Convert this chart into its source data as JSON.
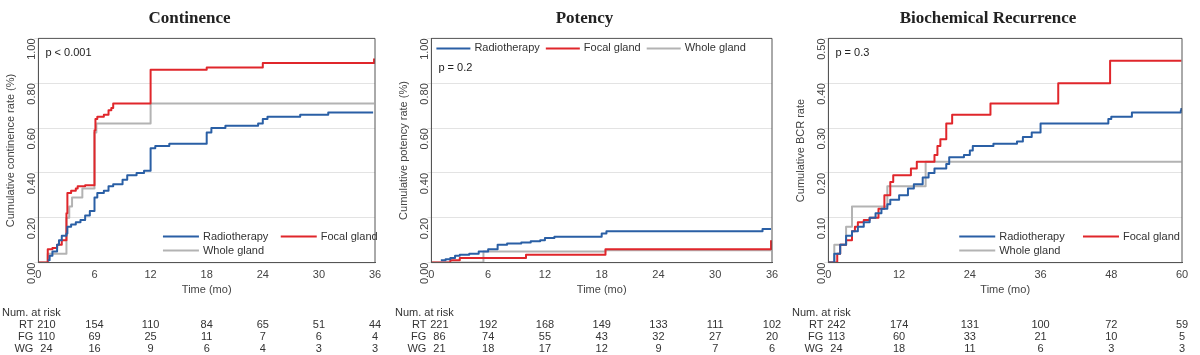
{
  "chart_data": [
    {
      "type": "step",
      "title": "Continence",
      "xlabel": "Time (mo)",
      "ylabel": "Cumulative continence rate (%)",
      "xlim": [
        0,
        36
      ],
      "xticks": [
        0,
        6,
        12,
        18,
        24,
        30,
        36
      ],
      "ylim": [
        0,
        1
      ],
      "yticks": [
        {
          "value": 0,
          "label": "0.00"
        },
        {
          "value": 0.2,
          "label": "0.20"
        },
        {
          "value": 0.4,
          "label": "0.40"
        },
        {
          "value": 0.6,
          "label": "0.60"
        },
        {
          "value": 0.8,
          "label": "0.80"
        },
        {
          "value": 1,
          "label": "1.00"
        }
      ],
      "grid": "y",
      "legend": "bottom right",
      "series": [
        {
          "name": "Radiotherapy",
          "color": "#2a5fa5",
          "x": [
            1,
            1.2,
            1.5,
            2,
            2.2,
            2.5,
            3,
            3.1,
            3.5,
            4,
            4.5,
            5,
            5.5,
            6,
            6.3,
            7,
            7.5,
            8,
            9,
            9.5,
            10.5,
            11.3,
            12,
            12.5,
            14,
            18,
            18.5,
            20,
            23.5,
            24,
            24.5,
            28,
            31,
            35.8
          ],
          "values": [
            0.01,
            0.03,
            0.05,
            0.08,
            0.1,
            0.12,
            0.13,
            0.16,
            0.17,
            0.18,
            0.19,
            0.21,
            0.23,
            0.29,
            0.31,
            0.32,
            0.34,
            0.35,
            0.37,
            0.39,
            0.4,
            0.41,
            0.51,
            0.52,
            0.53,
            0.58,
            0.6,
            0.61,
            0.62,
            0.64,
            0.65,
            0.66,
            0.67,
            0.67
          ]
        },
        {
          "name": "Focal gland",
          "color": "#e0262b",
          "x": [
            0,
            1,
            1.5,
            2,
            2.5,
            3,
            3.1,
            3.5,
            4,
            4.2,
            5,
            6,
            6.1,
            6.3,
            7,
            7.5,
            7.8,
            8,
            12,
            18,
            24,
            35.8,
            35.9
          ],
          "values": [
            0,
            0.06,
            0.065,
            0.08,
            0.1,
            0.22,
            0.31,
            0.32,
            0.33,
            0.34,
            0.345,
            0.59,
            0.64,
            0.65,
            0.66,
            0.68,
            0.69,
            0.71,
            0.86,
            0.87,
            0.89,
            0.89,
            0.91
          ]
        },
        {
          "name": "Whole gland",
          "color": "#b3b3b3",
          "x": [
            0,
            1,
            3,
            3.3,
            3.6,
            4.7,
            6,
            6.2,
            12,
            35.9
          ],
          "values": [
            0,
            0.04,
            0.2,
            0.25,
            0.29,
            0.33,
            0.58,
            0.62,
            0.71,
            0.71
          ]
        }
      ],
      "annotations": [
        "p < 0.001",
        "Num. at risk",
        "RT 210 154 110 84 65 51 44",
        "FG 110 69 25 11 7 6 4",
        "WG 24 16 9 6 4 3 3"
      ]
    },
    {
      "type": "step",
      "title": "Potency",
      "xlabel": "Time (mo)",
      "ylabel": "Cumulative potency rate (%)",
      "xlim": [
        0,
        36
      ],
      "xticks": [
        0,
        6,
        12,
        18,
        24,
        30,
        36
      ],
      "ylim": [
        0,
        1
      ],
      "yticks": [
        {
          "value": 0,
          "label": "0.00"
        },
        {
          "value": 0.2,
          "label": "0.20"
        },
        {
          "value": 0.4,
          "label": "0.40"
        },
        {
          "value": 0.6,
          "label": "0.60"
        },
        {
          "value": 0.8,
          "label": "0.80"
        },
        {
          "value": 1,
          "label": "1.00"
        }
      ],
      "grid": "y",
      "legend": "top",
      "series": [
        {
          "name": "Radiotherapy",
          "color": "#2a5fa5",
          "x": [
            1,
            1.5,
            2,
            2.5,
            3,
            4,
            5,
            6,
            7,
            8,
            9.5,
            10.5,
            11.5,
            12,
            13,
            18,
            18.5,
            35,
            35.9
          ],
          "values": [
            0.01,
            0.015,
            0.02,
            0.03,
            0.035,
            0.04,
            0.05,
            0.06,
            0.08,
            0.085,
            0.09,
            0.095,
            0.1,
            0.11,
            0.115,
            0.13,
            0.14,
            0.15,
            0.15
          ]
        },
        {
          "name": "Focal gland",
          "color": "#e0262b",
          "x": [
            0,
            2,
            3,
            10,
            18.4,
            35.8,
            35.9
          ],
          "values": [
            0,
            0.01,
            0.02,
            0.035,
            0.06,
            0.06,
            0.1
          ]
        },
        {
          "name": "Whole gland",
          "color": "#b3b3b3",
          "x": [
            0,
            5.5,
            18.4,
            35.9
          ],
          "values": [
            0,
            0.05,
            0.055,
            0.055
          ]
        }
      ],
      "annotations": [
        "p = 0.2",
        "Num. at risk",
        "RT 221 192 168 149 133 111 102",
        "FG 86 74 55 43 32 27 20",
        "WG 21 18 17 12 9 7 6"
      ]
    },
    {
      "type": "step",
      "title": "Biochemical Recurrence",
      "xlabel": "Time (mo)",
      "ylabel": "Cumulative BCR rate",
      "xlim": [
        0,
        60
      ],
      "xticks": [
        0,
        12,
        24,
        36,
        48,
        60
      ],
      "ylim": [
        0,
        0.5
      ],
      "yticks": [
        {
          "value": 0,
          "label": "0.00"
        },
        {
          "value": 0.1,
          "label": "0.10"
        },
        {
          "value": 0.2,
          "label": "0.20"
        },
        {
          "value": 0.3,
          "label": "0.30"
        },
        {
          "value": 0.4,
          "label": "0.40"
        },
        {
          "value": 0.5,
          "label": "0.50"
        }
      ],
      "grid": "y",
      "legend": "bottom right",
      "series": [
        {
          "name": "Radiotherapy",
          "color": "#2a5fa5",
          "x": [
            0,
            1,
            2,
            3,
            4,
            5,
            6,
            7,
            8,
            9,
            10,
            10.5,
            12,
            13.5,
            14.5,
            16,
            17,
            18,
            20,
            20.5,
            23,
            24,
            24.5,
            28,
            32,
            33,
            34.5,
            36,
            47.5,
            48,
            51.5,
            59.8,
            59.9
          ],
          "values": [
            0,
            0.02,
            0.04,
            0.06,
            0.07,
            0.08,
            0.09,
            0.1,
            0.11,
            0.12,
            0.13,
            0.14,
            0.15,
            0.165,
            0.175,
            0.19,
            0.2,
            0.21,
            0.22,
            0.235,
            0.24,
            0.25,
            0.26,
            0.265,
            0.27,
            0.28,
            0.29,
            0.31,
            0.32,
            0.325,
            0.335,
            0.34,
            0.345
          ]
        },
        {
          "name": "Focal gland",
          "color": "#e0262b",
          "x": [
            0,
            1.5,
            2,
            3,
            4,
            4.5,
            5,
            6,
            7,
            8.5,
            9.5,
            10.5,
            11,
            14,
            15,
            18,
            18.5,
            19,
            20,
            21,
            27.5,
            39,
            47.8,
            59.9
          ],
          "values": [
            0,
            0.02,
            0.04,
            0.05,
            0.07,
            0.08,
            0.09,
            0.095,
            0.1,
            0.12,
            0.15,
            0.18,
            0.195,
            0.21,
            0.225,
            0.24,
            0.26,
            0.275,
            0.31,
            0.33,
            0.355,
            0.4,
            0.45,
            0.45
          ]
        },
        {
          "name": "Whole gland",
          "color": "#b3b3b3",
          "x": [
            0,
            1,
            3,
            4,
            10,
            16.5,
            59.9
          ],
          "values": [
            0,
            0.04,
            0.08,
            0.125,
            0.17,
            0.225,
            0.225
          ]
        }
      ],
      "annotations": [
        "p = 0.3",
        "Num. at risk",
        "RT 242 174 131 100 72 59",
        "FG 113 60 33 21 10 5",
        "WG 24 18 11 6 3 3"
      ]
    }
  ]
}
